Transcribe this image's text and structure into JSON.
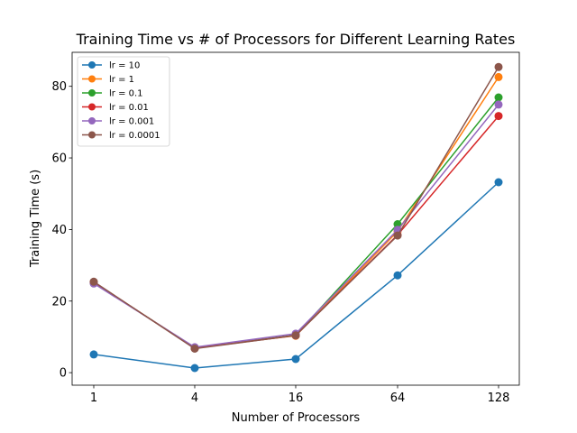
{
  "chart_data": {
    "type": "line",
    "title": "Training Time vs # of Processors for Different Learning Rates",
    "xlabel": "Number of Processors",
    "ylabel": "Training Time (s)",
    "categories": [
      "1",
      "4",
      "16",
      "64",
      "128"
    ],
    "ylim": [
      -3.5,
      89.5
    ],
    "yticks": [
      0,
      20,
      40,
      60,
      80
    ],
    "grid": false,
    "legend_position": "top-left",
    "series": [
      {
        "name": "lr = 10",
        "color": "#1f77b4",
        "values": [
          5.1,
          1.3,
          3.8,
          27.2,
          53.2
        ]
      },
      {
        "name": "lr = 1",
        "color": "#ff7f0e",
        "values": [
          25.1,
          7.0,
          10.3,
          39.5,
          82.6
        ]
      },
      {
        "name": "lr = 0.1",
        "color": "#2ca02c",
        "values": [
          25.2,
          6.9,
          10.5,
          41.5,
          76.9
        ]
      },
      {
        "name": "lr = 0.01",
        "color": "#d62728",
        "values": [
          25.3,
          6.8,
          10.4,
          38.5,
          71.7
        ]
      },
      {
        "name": "lr = 0.001",
        "color": "#9467bd",
        "values": [
          24.9,
          7.1,
          10.9,
          39.9,
          74.9
        ]
      },
      {
        "name": "lr = 0.0001",
        "color": "#8c564b",
        "values": [
          25.4,
          6.7,
          10.4,
          38.3,
          85.4
        ]
      }
    ]
  }
}
